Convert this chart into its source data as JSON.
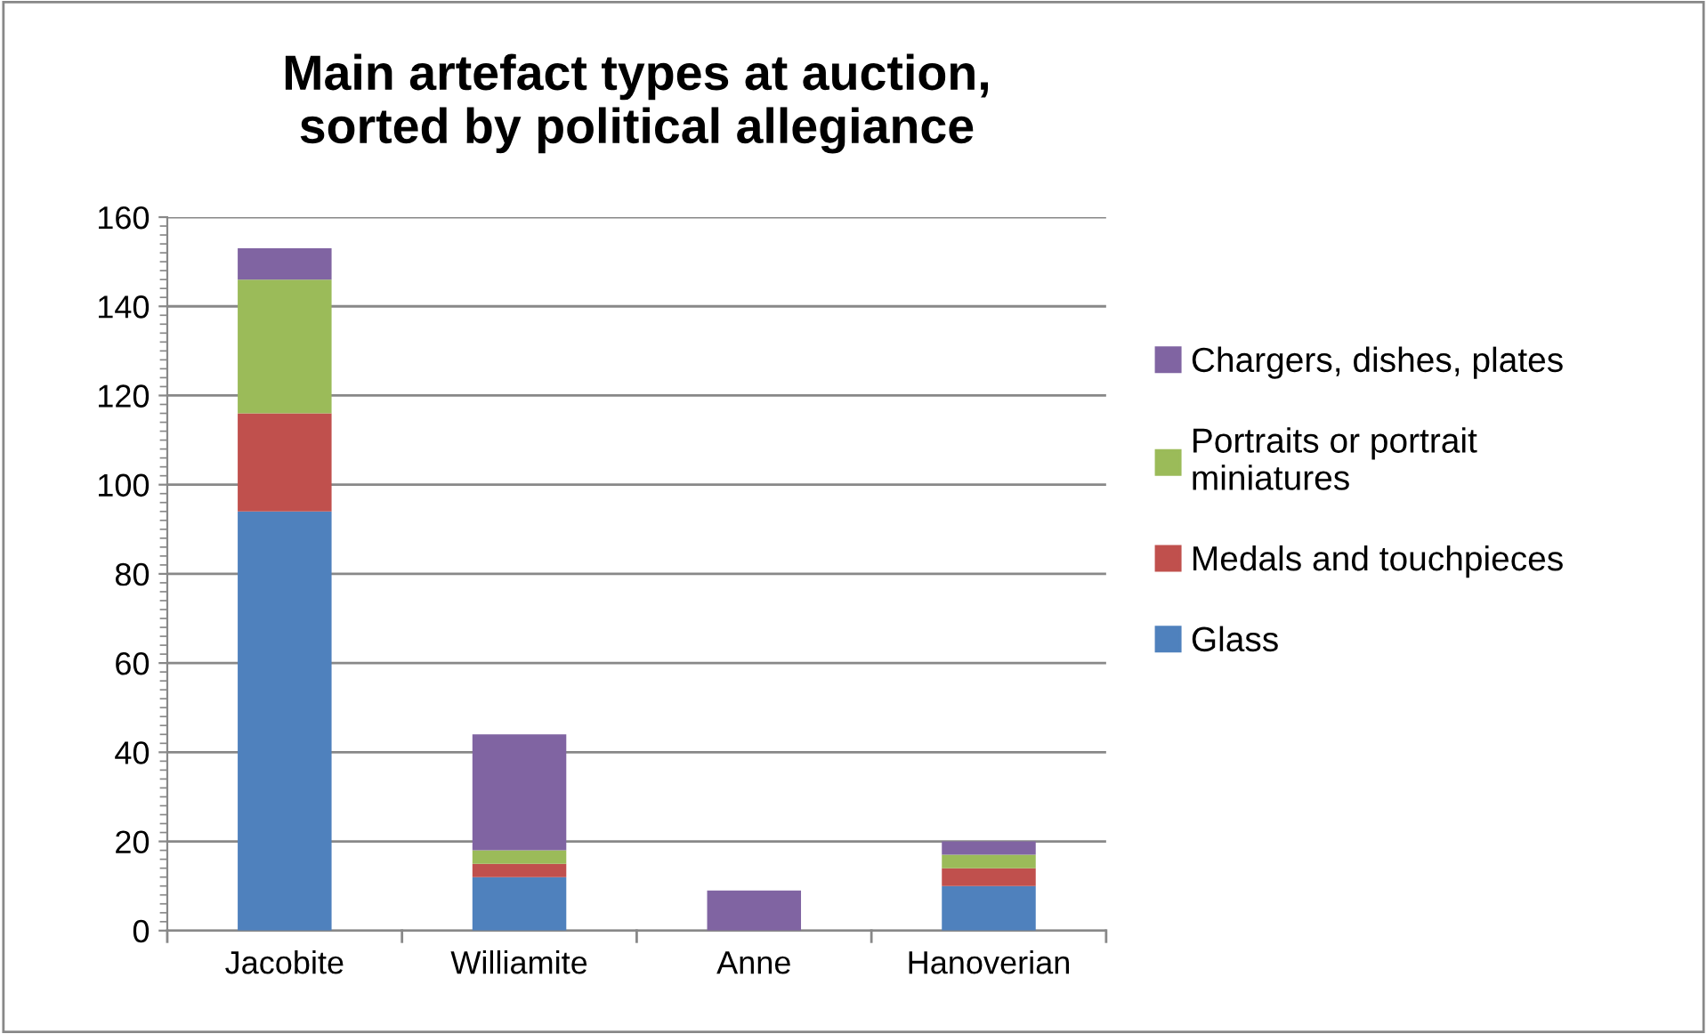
{
  "chart_data": {
    "type": "bar",
    "title": "Main artefact types at auction,\nsorted by political allegiance",
    "stacked": true,
    "categories": [
      "Jacobite",
      "Williamite",
      "Anne",
      "Hanoverian"
    ],
    "series": [
      {
        "name": "Glass",
        "color": "#4f81bd",
        "values": [
          94,
          12,
          0,
          10
        ]
      },
      {
        "name": "Medals and touchpieces",
        "color": "#c0504d",
        "values": [
          22,
          3,
          0,
          4
        ]
      },
      {
        "name": "Portraits or portrait miniatures",
        "color": "#9bbb59",
        "values": [
          30,
          3,
          0,
          3
        ]
      },
      {
        "name": "Chargers, dishes, plates",
        "color": "#8064a2",
        "values": [
          7,
          26,
          9,
          3
        ]
      }
    ],
    "ylim": [
      0,
      160
    ],
    "yticks": [
      0,
      20,
      40,
      60,
      80,
      100,
      120,
      140,
      160
    ],
    "grid": "y",
    "legend": "right"
  }
}
